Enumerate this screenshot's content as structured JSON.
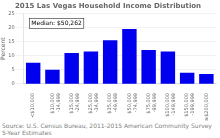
{
  "chart_data": {
    "type": "bar",
    "title": "2015 Las Vegas Household Income Distribution",
    "ylabel": "Percent",
    "annotation": "Median: $50,262",
    "source": "Source: U.S. Census Bureau, 2011-2015 American Community Survey 5-Year Estimates",
    "categories": [
      "<$10,000",
      "$10,000\n-14,999",
      "$15,000\n-24,999",
      "$25,000\n-34,999",
      "$35,000\n-49,999",
      "$50,000\n-74,999",
      "$75,000\n-99,999",
      "$100,000\n-149,999",
      "$150,000\n-199,999",
      "≥$200,000"
    ],
    "values": [
      7.5,
      5.0,
      11.0,
      11.5,
      15.5,
      19.5,
      12.0,
      11.5,
      4.0,
      3.5
    ],
    "color": "#0000ee",
    "ylim": [
      0,
      25
    ],
    "yticks": [
      0,
      5,
      10,
      15,
      20,
      25
    ],
    "grid": true
  }
}
